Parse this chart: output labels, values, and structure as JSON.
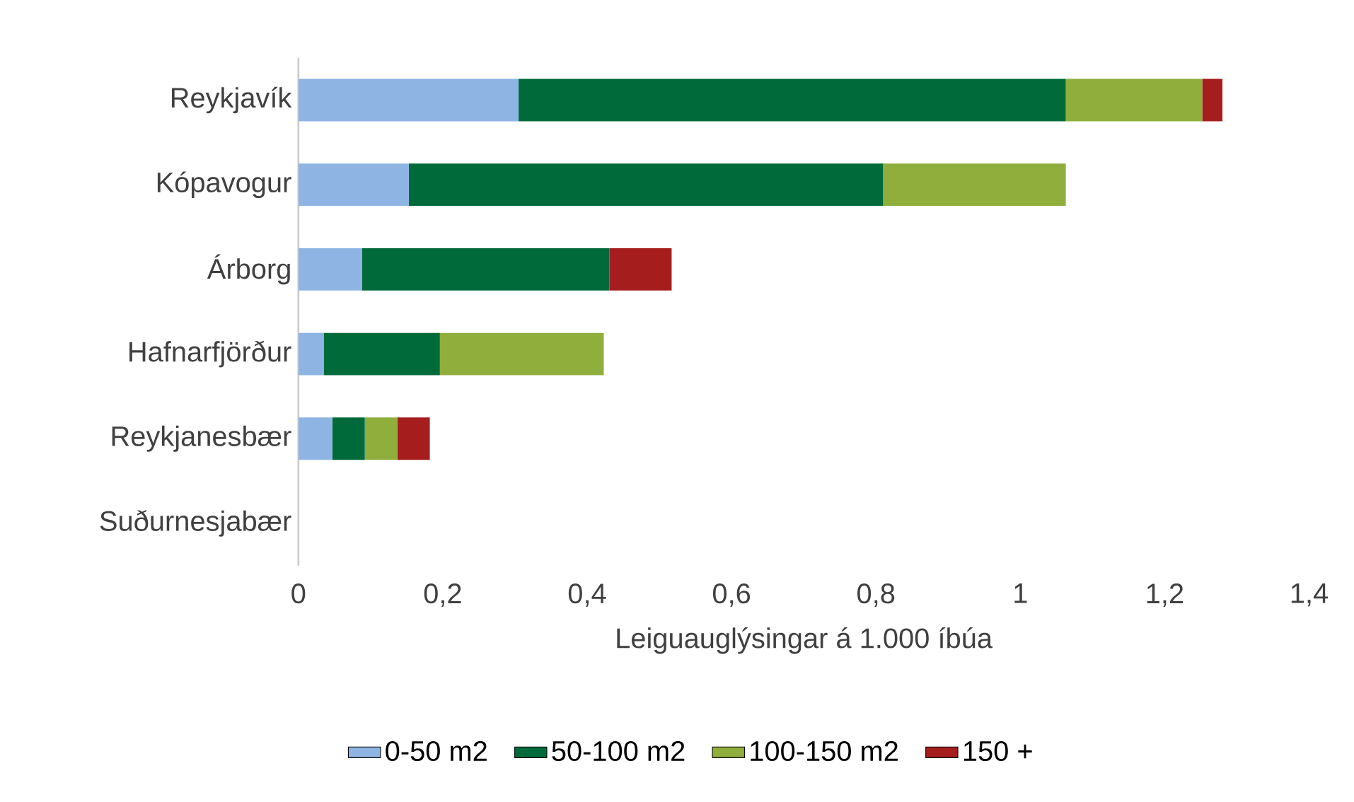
{
  "chart_data": {
    "type": "bar",
    "orientation": "horizontal",
    "stacked": true,
    "categories": [
      "Reykjavík",
      "Kópavogur",
      "Árborg",
      "Hafnarfjörður",
      "Reykjanesbær",
      "Suðurnesjabær"
    ],
    "series": [
      {
        "name": "0-50 m2",
        "color": "#8eb4e3",
        "values": [
          0.305,
          0.153,
          0.088,
          0.035,
          0.047,
          0
        ]
      },
      {
        "name": "50-100 m2",
        "color": "#006a3a",
        "values": [
          0.758,
          0.657,
          0.343,
          0.161,
          0.045,
          0
        ]
      },
      {
        "name": "100-150 m2",
        "color": "#8fae3c",
        "values": [
          0.189,
          0.253,
          0,
          0.227,
          0.045,
          0
        ]
      },
      {
        "name": "150 +",
        "color": "#a51d1d",
        "values": [
          0.028,
          0,
          0.086,
          0,
          0.045,
          0
        ]
      }
    ],
    "xlabel": "Leiguauglýsingar á 1.000 íbúa",
    "xlim": [
      0,
      1.4
    ],
    "xticks": [
      0,
      {
        "value": 0.2,
        "label": "0,2"
      },
      {
        "value": 0.4,
        "label": "0,4"
      },
      {
        "value": 0.6,
        "label": "0,6"
      },
      {
        "value": 0.8,
        "label": "0,8"
      },
      1,
      {
        "value": 1.2,
        "label": "1,2"
      },
      {
        "value": 1.4,
        "label": "1,4"
      }
    ],
    "legend": "bottom"
  }
}
